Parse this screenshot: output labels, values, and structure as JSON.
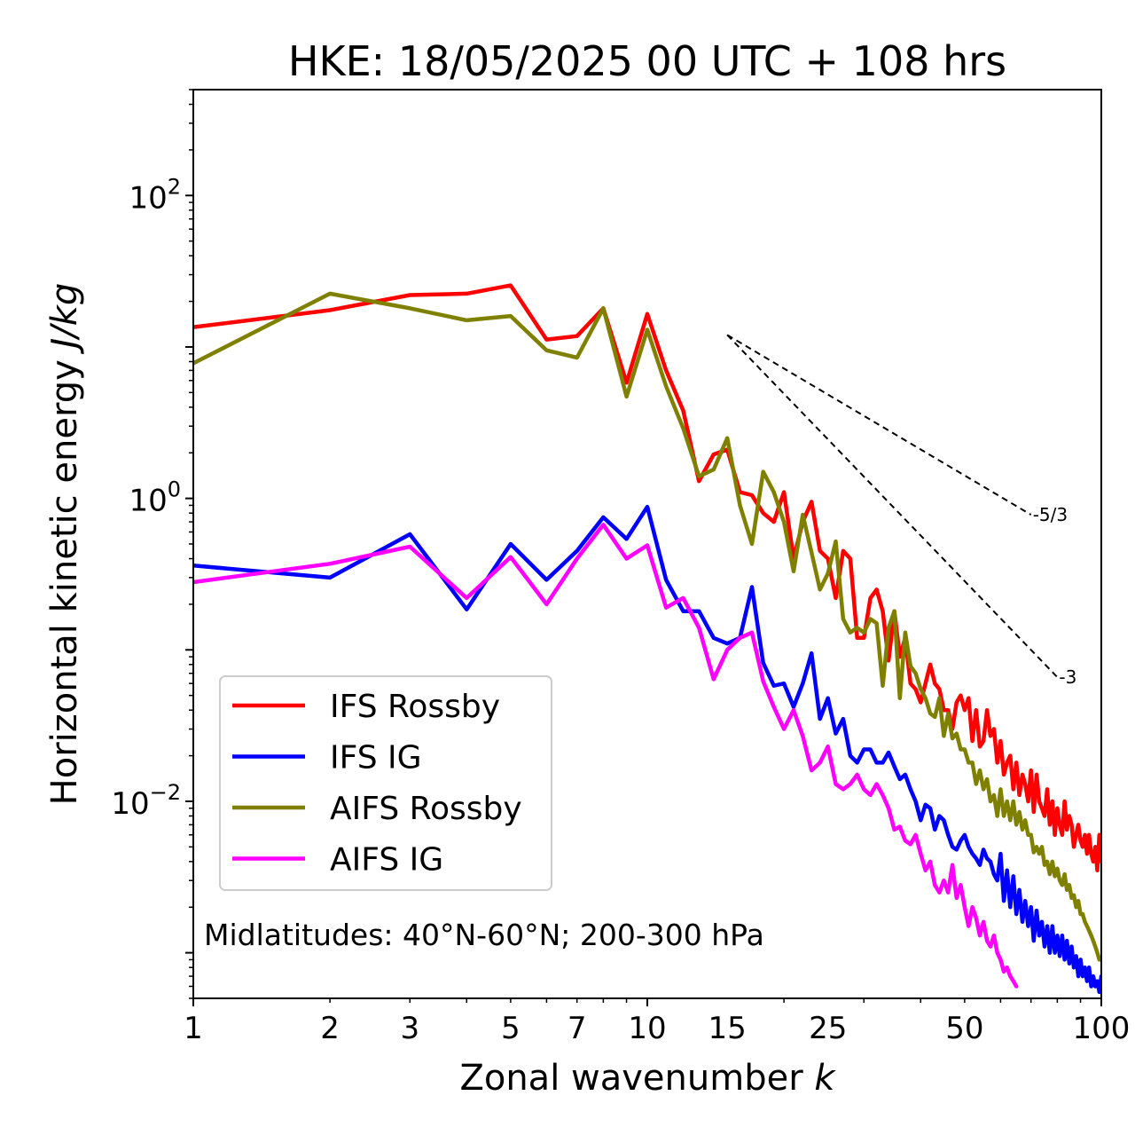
{
  "chart_data": {
    "type": "line",
    "title": "HKE: 18/05/2025 00 UTC + 108 hrs",
    "xlabel_main": "Zonal wavenumber ",
    "xlabel_var": "k",
    "ylabel_main": "Horizontal kinetic energy ",
    "ylabel_var": "J/kg",
    "xscale": "log",
    "yscale": "log",
    "xlim": [
      1,
      100
    ],
    "ylim": [
      0.0005,
      500
    ],
    "xticks": [
      1,
      2,
      3,
      5,
      7,
      10,
      15,
      25,
      50,
      100
    ],
    "xtick_labels": [
      "1",
      "2",
      "3",
      "5",
      "7",
      "10",
      "15",
      "25",
      "50",
      "100"
    ],
    "yticks": [
      0.01,
      1,
      100
    ],
    "ytick_labels": [
      {
        "base": "10",
        "exp": "−2"
      },
      {
        "base": "10",
        "exp": "0"
      },
      {
        "base": "10",
        "exp": "2"
      }
    ],
    "grid": false,
    "legend_position": "lower-left",
    "annotation": "Midlatitudes: 40°N-60°N; 200-300 hPa",
    "reference_lines": [
      {
        "label": "-5/3",
        "x": [
          15,
          70
        ],
        "y": [
          12.0,
          0.78
        ]
      },
      {
        "label": "-3",
        "x": [
          15,
          80
        ],
        "y": [
          12.0,
          0.066
        ]
      }
    ],
    "series": [
      {
        "name": "IFS Rossby",
        "color": "#ff0000",
        "x": [
          1,
          2,
          3,
          4,
          5,
          6,
          7,
          8,
          9,
          10,
          11,
          12,
          13,
          14,
          15,
          16,
          17,
          18,
          19,
          20,
          21,
          22,
          23,
          24,
          25,
          26,
          27,
          28,
          29,
          30,
          31,
          32,
          33,
          34,
          35,
          36,
          37,
          38,
          39,
          40,
          41,
          42,
          43,
          44,
          45,
          46,
          47,
          48,
          49,
          50,
          51,
          52,
          53,
          54,
          55,
          56,
          57,
          58,
          59,
          60,
          61,
          62,
          63,
          64,
          65,
          66,
          67,
          68,
          69,
          70,
          71,
          72,
          73,
          74,
          75,
          76,
          77,
          78,
          79,
          80,
          81,
          82,
          83,
          84,
          85,
          86,
          87,
          88,
          89,
          90,
          91,
          92,
          93,
          94,
          95,
          96,
          97,
          98,
          99,
          100
        ],
        "y": [
          13.5,
          17.5,
          22.0,
          22.5,
          25.5,
          11.2,
          11.8,
          18.0,
          5.8,
          16.5,
          7.0,
          3.8,
          1.3,
          1.95,
          2.1,
          1.1,
          1.05,
          0.8,
          0.7,
          1.1,
          0.4,
          0.7,
          0.95,
          0.45,
          0.4,
          0.22,
          0.45,
          0.4,
          0.12,
          0.12,
          0.22,
          0.25,
          0.18,
          0.085,
          0.18,
          0.09,
          0.12,
          0.06,
          0.055,
          0.045,
          0.06,
          0.08,
          0.06,
          0.055,
          0.04,
          0.04,
          0.03,
          0.045,
          0.05,
          0.04,
          0.048,
          0.025,
          0.04,
          0.023,
          0.025,
          0.04,
          0.027,
          0.03,
          0.018,
          0.025,
          0.015,
          0.018,
          0.02,
          0.012,
          0.018,
          0.011,
          0.015,
          0.013,
          0.01,
          0.016,
          0.0085,
          0.015,
          0.01,
          0.009,
          0.008,
          0.012,
          0.007,
          0.01,
          0.006,
          0.009,
          0.007,
          0.006,
          0.01,
          0.0065,
          0.008,
          0.007,
          0.005,
          0.006,
          0.007,
          0.0055,
          0.005,
          0.006,
          0.0045,
          0.006,
          0.0045,
          0.004,
          0.005,
          0.0035,
          0.006,
          0.004
        ]
      },
      {
        "name": "IFS IG",
        "color": "#0000ff",
        "x": [
          1,
          2,
          3,
          4,
          5,
          6,
          7,
          8,
          9,
          10,
          11,
          12,
          13,
          14,
          15,
          16,
          17,
          18,
          19,
          20,
          21,
          22,
          23,
          24,
          25,
          26,
          27,
          28,
          29,
          30,
          31,
          32,
          33,
          34,
          35,
          36,
          37,
          38,
          39,
          40,
          41,
          42,
          43,
          44,
          45,
          46,
          47,
          48,
          49,
          50,
          51,
          52,
          53,
          54,
          55,
          56,
          57,
          58,
          59,
          60,
          61,
          62,
          63,
          64,
          65,
          66,
          67,
          68,
          69,
          70,
          71,
          72,
          73,
          74,
          75,
          76,
          77,
          78,
          79,
          80,
          81,
          82,
          83,
          84,
          85,
          86,
          87,
          88,
          89,
          90,
          91,
          92,
          93,
          94,
          95,
          96,
          97,
          98,
          99,
          100
        ],
        "y": [
          0.36,
          0.3,
          0.58,
          0.185,
          0.5,
          0.29,
          0.45,
          0.75,
          0.54,
          0.88,
          0.29,
          0.18,
          0.18,
          0.12,
          0.11,
          0.12,
          0.26,
          0.082,
          0.058,
          0.06,
          0.042,
          0.06,
          0.095,
          0.035,
          0.048,
          0.028,
          0.035,
          0.02,
          0.018,
          0.022,
          0.022,
          0.018,
          0.018,
          0.021,
          0.017,
          0.014,
          0.015,
          0.012,
          0.01,
          0.0075,
          0.0095,
          0.009,
          0.0065,
          0.008,
          0.0075,
          0.006,
          0.005,
          0.0048,
          0.0055,
          0.006,
          0.005,
          0.0045,
          0.0042,
          0.0038,
          0.0048,
          0.0042,
          0.004,
          0.0033,
          0.003,
          0.0045,
          0.0022,
          0.0035,
          0.002,
          0.0032,
          0.0018,
          0.0026,
          0.0016,
          0.0022,
          0.0015,
          0.002,
          0.0012,
          0.0019,
          0.0013,
          0.0016,
          0.0011,
          0.0015,
          0.001,
          0.0015,
          0.001,
          0.0013,
          0.00095,
          0.0013,
          0.0009,
          0.0012,
          0.00085,
          0.0011,
          0.0008,
          0.00095,
          0.0007,
          0.0009,
          0.0007,
          0.0008,
          0.00065,
          0.0008,
          0.0006,
          0.0007,
          0.0006,
          0.00065,
          0.00055,
          0.0007
        ]
      },
      {
        "name": "AIFS Rossby",
        "color": "#808000",
        "x": [
          1,
          2,
          3,
          4,
          5,
          6,
          7,
          8,
          9,
          10,
          11,
          12,
          13,
          14,
          15,
          16,
          17,
          18,
          19,
          20,
          21,
          22,
          23,
          24,
          25,
          26,
          27,
          28,
          29,
          30,
          31,
          32,
          33,
          34,
          35,
          36,
          37,
          38,
          39,
          40,
          41,
          42,
          43,
          44,
          45,
          46,
          47,
          48,
          49,
          50,
          51,
          52,
          53,
          54,
          55,
          56,
          57,
          58,
          59,
          60,
          61,
          62,
          63,
          64,
          65,
          66,
          67,
          68,
          69,
          70,
          71,
          72,
          73,
          74,
          75,
          76,
          77,
          78,
          79,
          80,
          81,
          82,
          83,
          84,
          85,
          86,
          87,
          88,
          89,
          90,
          91,
          92,
          93,
          94,
          95,
          96,
          97,
          98,
          99,
          100
        ],
        "y": [
          7.8,
          22.5,
          18.0,
          15.0,
          16.0,
          9.5,
          8.5,
          18.0,
          4.7,
          13.0,
          5.5,
          2.9,
          1.4,
          1.55,
          2.5,
          0.9,
          0.5,
          1.5,
          1.1,
          0.7,
          0.33,
          0.78,
          0.44,
          0.25,
          0.32,
          0.52,
          0.16,
          0.13,
          0.14,
          0.13,
          0.16,
          0.15,
          0.058,
          0.14,
          0.18,
          0.048,
          0.13,
          0.078,
          0.07,
          0.055,
          0.048,
          0.038,
          0.036,
          0.048,
          0.027,
          0.038,
          0.026,
          0.028,
          0.022,
          0.022,
          0.018,
          0.018,
          0.013,
          0.016,
          0.012,
          0.014,
          0.01,
          0.011,
          0.008,
          0.012,
          0.008,
          0.01,
          0.0075,
          0.01,
          0.007,
          0.0085,
          0.0065,
          0.0075,
          0.006,
          0.006,
          0.0046,
          0.005,
          0.0045,
          0.005,
          0.0038,
          0.004,
          0.0033,
          0.004,
          0.0032,
          0.0036,
          0.003,
          0.0028,
          0.0033,
          0.0026,
          0.0028,
          0.0023,
          0.0024,
          0.002,
          0.0022,
          0.0018,
          0.0018,
          0.0016,
          0.0015,
          0.0014,
          0.0013,
          0.0012,
          0.0011,
          0.001,
          0.0009,
          0.0009
        ]
      },
      {
        "name": "AIFS IG",
        "color": "#ff00ff",
        "x": [
          1,
          2,
          3,
          4,
          5,
          6,
          7,
          8,
          9,
          10,
          11,
          12,
          13,
          14,
          15,
          16,
          17,
          18,
          19,
          20,
          21,
          22,
          23,
          24,
          25,
          26,
          27,
          28,
          29,
          30,
          31,
          32,
          33,
          34,
          35,
          36,
          37,
          38,
          39,
          40,
          41,
          42,
          43,
          44,
          45,
          46,
          47,
          48,
          49,
          50,
          51,
          52,
          53,
          54,
          55,
          56,
          57,
          58,
          59,
          60,
          61,
          62,
          63,
          64,
          65
        ],
        "y": [
          0.28,
          0.37,
          0.48,
          0.22,
          0.41,
          0.2,
          0.4,
          0.67,
          0.4,
          0.49,
          0.19,
          0.22,
          0.14,
          0.064,
          0.1,
          0.12,
          0.13,
          0.062,
          0.042,
          0.03,
          0.04,
          0.027,
          0.016,
          0.018,
          0.023,
          0.013,
          0.012,
          0.013,
          0.015,
          0.012,
          0.011,
          0.013,
          0.011,
          0.009,
          0.0065,
          0.0068,
          0.0055,
          0.0052,
          0.006,
          0.0045,
          0.0035,
          0.004,
          0.0028,
          0.0025,
          0.003,
          0.0025,
          0.0038,
          0.0023,
          0.0028,
          0.002,
          0.0015,
          0.002,
          0.0017,
          0.0013,
          0.0016,
          0.0012,
          0.0011,
          0.0013,
          0.001,
          0.0009,
          0.00075,
          0.0008,
          0.0007,
          0.00065,
          0.0006
        ]
      }
    ]
  }
}
